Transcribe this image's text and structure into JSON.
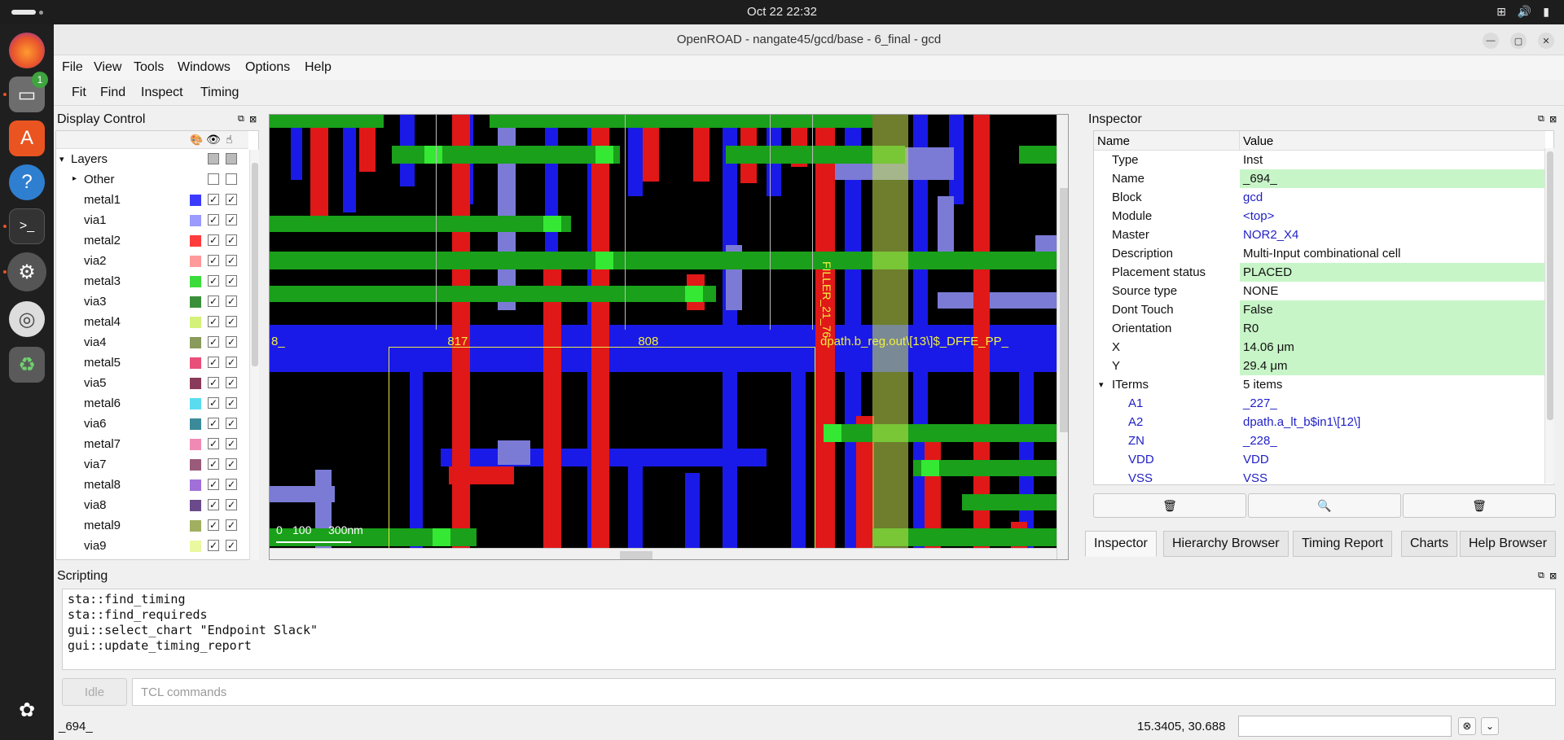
{
  "topbar": {
    "clock": "Oct 22  22:32",
    "tray": [
      "network-icon",
      "volume-icon",
      "battery-icon"
    ]
  },
  "dock": {
    "badge_count": "1",
    "scale_tick": "300nm"
  },
  "window": {
    "title": "OpenROAD - nangate45/gcd/base - 6_final - gcd"
  },
  "menubar": {
    "items": [
      "File",
      "View",
      "Tools",
      "Windows",
      "Options",
      "Help"
    ]
  },
  "toolbar": {
    "items": [
      "Fit",
      "Find",
      "Inspect",
      "Timing"
    ]
  },
  "display_control": {
    "title": "Display Control",
    "layers_label": "Layers",
    "other_label": "Other",
    "layers": [
      {
        "name": "metal1",
        "color": "#3b3bff"
      },
      {
        "name": "via1",
        "color": "#9a9aff"
      },
      {
        "name": "metal2",
        "color": "#ff3b3b"
      },
      {
        "name": "via2",
        "color": "#ff9a9a"
      },
      {
        "name": "metal3",
        "color": "#3bdc3b"
      },
      {
        "name": "via3",
        "color": "#3b8f3b"
      },
      {
        "name": "metal4",
        "color": "#d4f27a"
      },
      {
        "name": "via4",
        "color": "#8a9a5a"
      },
      {
        "name": "metal5",
        "color": "#e8507a"
      },
      {
        "name": "via5",
        "color": "#8a3a5a"
      },
      {
        "name": "metal6",
        "color": "#5adcf0"
      },
      {
        "name": "via6",
        "color": "#3a8a9a"
      },
      {
        "name": "metal7",
        "color": "#f08ab4"
      },
      {
        "name": "via7",
        "color": "#9a5a7a"
      },
      {
        "name": "metal8",
        "color": "#a070d8"
      },
      {
        "name": "via8",
        "color": "#6a4a8a"
      },
      {
        "name": "metal9",
        "color": "#a0b060"
      },
      {
        "name": "via9",
        "color": "#eaf8a0"
      }
    ]
  },
  "layout_view": {
    "labels": {
      "left_cut": "8_",
      "inst1": "_817_",
      "inst2": "_808_",
      "filler": "FILLER_21_76",
      "reg": "dpath.b_reg.out\\[13\\]$_DFFE_PP_"
    },
    "scale": {
      "t0": "0",
      "t1": "100",
      "t2": "300nm"
    }
  },
  "inspector": {
    "title": "Inspector",
    "col_name": "Name",
    "col_value": "Value",
    "rows": [
      {
        "name": "Type",
        "value": "Inst"
      },
      {
        "name": "Name",
        "value": "_694_"
      },
      {
        "name": "Block",
        "value": "gcd"
      },
      {
        "name": "Module",
        "value": "<top>"
      },
      {
        "name": "Master",
        "value": "NOR2_X4"
      },
      {
        "name": "Description",
        "value": "Multi-Input combinational cell"
      },
      {
        "name": "Placement status",
        "value": "PLACED"
      },
      {
        "name": "Source type",
        "value": "NONE"
      },
      {
        "name": "Dont Touch",
        "value": "False"
      },
      {
        "name": "Orientation",
        "value": "R0"
      },
      {
        "name": "X",
        "value": "14.06 μm"
      },
      {
        "name": "Y",
        "value": "29.4 μm"
      },
      {
        "name": "ITerms",
        "value": "5 items"
      },
      {
        "name": "A1",
        "value": "_227_"
      },
      {
        "name": "A2",
        "value": "dpath.a_lt_b$in1\\[12\\]"
      },
      {
        "name": "ZN",
        "value": "_228_"
      },
      {
        "name": "VDD",
        "value": "VDD"
      },
      {
        "name": "VSS",
        "value": "VSS"
      }
    ],
    "tabs": [
      "Inspector",
      "Hierarchy Browser",
      "Timing Report",
      "Charts",
      "Help Browser"
    ]
  },
  "scripting": {
    "title": "Scripting",
    "log": "sta::find_timing\nsta::find_requireds\ngui::select_chart \"Endpoint Slack\"\ngui::update_timing_report",
    "idle_label": "Idle",
    "tcl_placeholder": "TCL commands"
  },
  "status": {
    "selection": "_694_",
    "coords": "15.3405, 30.688"
  }
}
